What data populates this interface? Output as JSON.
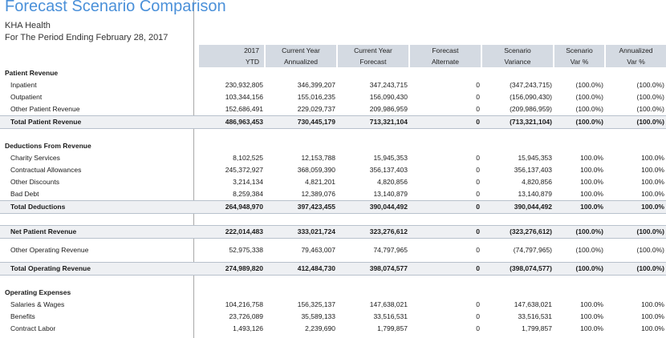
{
  "report": {
    "title": "Forecast Scenario Comparison",
    "organization": "KHA Health",
    "period": "For The Period Ending February 28, 2017"
  },
  "columns": [
    {
      "line1": "2017",
      "line2": "YTD"
    },
    {
      "line1": "Current Year",
      "line2": "Annualized"
    },
    {
      "line1": "Current Year",
      "line2": "Forecast"
    },
    {
      "line1": "Forecast",
      "line2": "Alternate"
    },
    {
      "line1": "Scenario",
      "line2": "Variance"
    },
    {
      "line1": "Scenario",
      "line2": "Var %"
    },
    {
      "line1": "Annualized",
      "line2": "Var %"
    }
  ],
  "rows": [
    {
      "kind": "section",
      "label": "Patient Revenue"
    },
    {
      "kind": "item",
      "label": "Inpatient",
      "values": [
        "230,932,805",
        "346,399,207",
        "347,243,715",
        "0",
        "(347,243,715)",
        "(100.0%)",
        "(100.0%)"
      ]
    },
    {
      "kind": "item",
      "label": "Outpatient",
      "values": [
        "103,344,156",
        "155,016,235",
        "156,090,430",
        "0",
        "(156,090,430)",
        "(100.0%)",
        "(100.0%)"
      ]
    },
    {
      "kind": "item",
      "label": "Other Patient Revenue",
      "values": [
        "152,686,491",
        "229,029,737",
        "209,986,959",
        "0",
        "(209,986,959)",
        "(100.0%)",
        "(100.0%)"
      ]
    },
    {
      "kind": "total",
      "label": "Total Patient Revenue",
      "values": [
        "486,963,453",
        "730,445,179",
        "713,321,104",
        "0",
        "(713,321,104)",
        "(100.0%)",
        "(100.0%)"
      ]
    },
    {
      "kind": "spacer"
    },
    {
      "kind": "section",
      "label": "Deductions From Revenue"
    },
    {
      "kind": "item",
      "label": "Charity Services",
      "values": [
        "8,102,525",
        "12,153,788",
        "15,945,353",
        "0",
        "15,945,353",
        "100.0%",
        "100.0%"
      ]
    },
    {
      "kind": "item",
      "label": "Contractual Allowances",
      "values": [
        "245,372,927",
        "368,059,390",
        "356,137,403",
        "0",
        "356,137,403",
        "100.0%",
        "100.0%"
      ]
    },
    {
      "kind": "item",
      "label": "Other Discounts",
      "values": [
        "3,214,134",
        "4,821,201",
        "4,820,856",
        "0",
        "4,820,856",
        "100.0%",
        "100.0%"
      ]
    },
    {
      "kind": "item",
      "label": "Bad Debt",
      "values": [
        "8,259,384",
        "12,389,076",
        "13,140,879",
        "0",
        "13,140,879",
        "100.0%",
        "100.0%"
      ]
    },
    {
      "kind": "total",
      "label": "Total Deductions",
      "values": [
        "264,948,970",
        "397,423,455",
        "390,044,492",
        "0",
        "390,044,492",
        "100.0%",
        "100.0%"
      ]
    },
    {
      "kind": "spacer"
    },
    {
      "kind": "total",
      "label": "Net Patient Revenue",
      "values": [
        "222,014,483",
        "333,021,724",
        "323,276,612",
        "0",
        "(323,276,612)",
        "(100.0%)",
        "(100.0%)"
      ]
    },
    {
      "kind": "tall",
      "label": "Other Operating Revenue",
      "values": [
        "52,975,338",
        "79,463,007",
        "74,797,965",
        "0",
        "(74,797,965)",
        "(100.0%)",
        "(100.0%)"
      ]
    },
    {
      "kind": "total",
      "label": "Total Operating Revenue",
      "values": [
        "274,989,820",
        "412,484,730",
        "398,074,577",
        "0",
        "(398,074,577)",
        "(100.0%)",
        "(100.0%)"
      ]
    },
    {
      "kind": "spacer"
    },
    {
      "kind": "section",
      "label": "Operating Expenses"
    },
    {
      "kind": "item",
      "label": "Salaries & Wages",
      "values": [
        "104,216,758",
        "156,325,137",
        "147,638,021",
        "0",
        "147,638,021",
        "100.0%",
        "100.0%"
      ]
    },
    {
      "kind": "item",
      "label": "Benefits",
      "values": [
        "23,726,089",
        "35,589,133",
        "33,516,531",
        "0",
        "33,516,531",
        "100.0%",
        "100.0%"
      ]
    },
    {
      "kind": "item",
      "label": "Contract Labor",
      "values": [
        "1,493,126",
        "2,239,690",
        "1,799,857",
        "0",
        "1,799,857",
        "100.0%",
        "100.0%"
      ]
    }
  ]
}
